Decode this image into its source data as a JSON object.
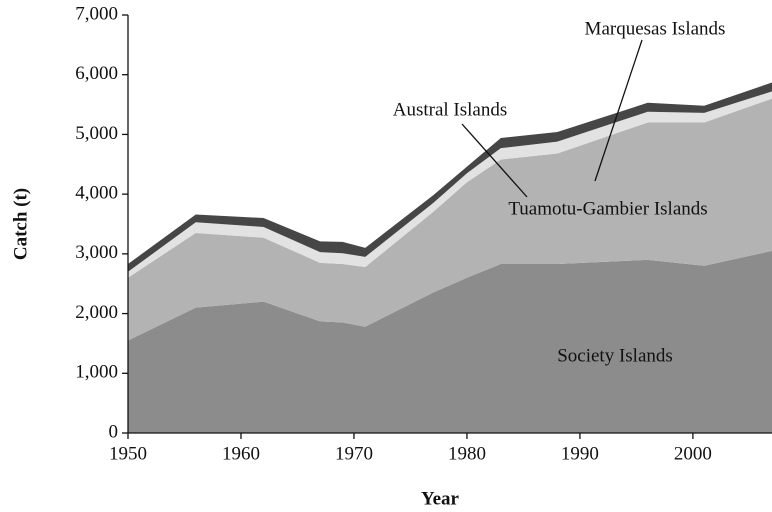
{
  "chart_data": {
    "type": "stacked_area",
    "xlabel": "Year",
    "ylabel": "Catch (t)",
    "x": [
      1950,
      1956,
      1962,
      1967,
      1969,
      1971,
      1977,
      1980,
      1983,
      1988,
      1996,
      2001,
      2007
    ],
    "series": [
      {
        "name": "Society Islands",
        "color": "#8c8c8c",
        "values": [
          1550,
          2100,
          2200,
          1870,
          1850,
          1780,
          2350,
          2600,
          2830,
          2830,
          2900,
          2800,
          3050
        ]
      },
      {
        "name": "Tuamotu-Gambier Islands",
        "color": "#b3b3b3",
        "values": [
          1050,
          1250,
          1070,
          980,
          980,
          1000,
          1350,
          1600,
          1750,
          1850,
          2300,
          2400,
          2550
        ]
      },
      {
        "name": "Austral Islands",
        "color": "#e2e2e2",
        "values": [
          100,
          180,
          180,
          180,
          180,
          170,
          150,
          150,
          190,
          200,
          180,
          160,
          120
        ]
      },
      {
        "name": "Marquesas Islands",
        "color": "#464646",
        "values": [
          130,
          130,
          150,
          180,
          190,
          150,
          130,
          110,
          170,
          160,
          150,
          120,
          150
        ]
      }
    ],
    "xlim": [
      1950,
      2007
    ],
    "xticks": [
      1950,
      1960,
      1970,
      1980,
      1990,
      2000
    ],
    "ylim": [
      0,
      7000
    ],
    "yticks": [
      0,
      {
        "value": 1000,
        "label": "1,000"
      },
      {
        "value": 2000,
        "label": "2,000"
      },
      {
        "value": 3000,
        "label": "3,000"
      },
      {
        "value": 4000,
        "label": "4,000"
      },
      {
        "value": 5000,
        "label": "5,000"
      },
      {
        "value": 6000,
        "label": "6,000"
      },
      {
        "value": 7000,
        "label": "7,000"
      }
    ]
  }
}
